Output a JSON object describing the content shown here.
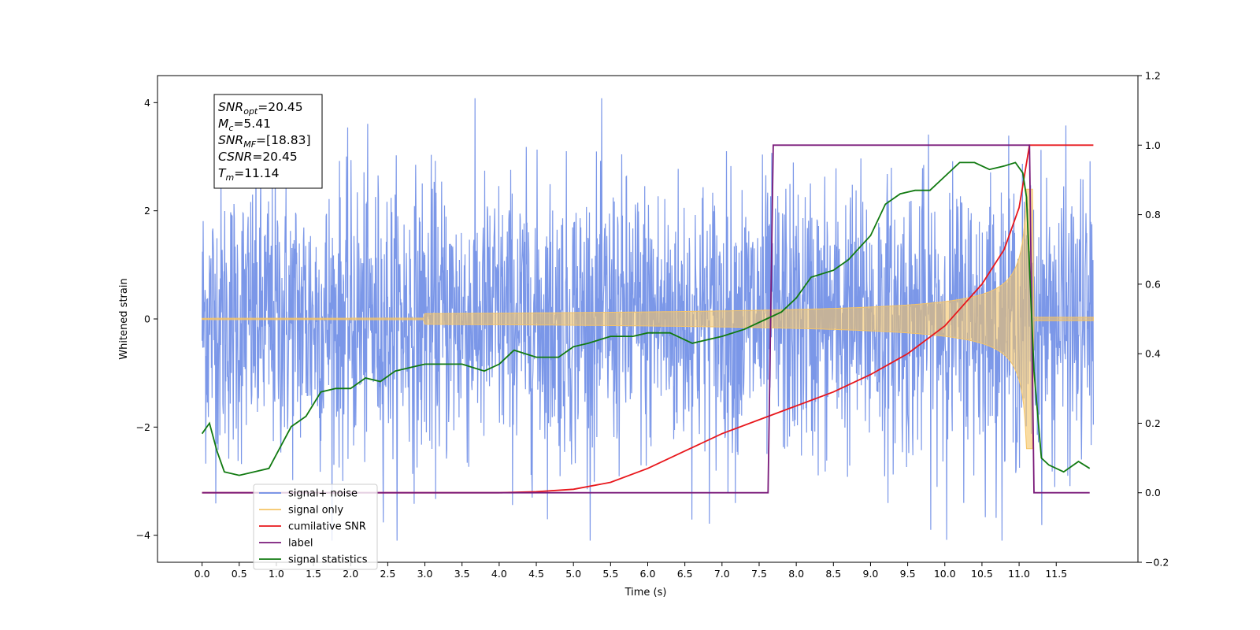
{
  "chart_data": {
    "type": "line",
    "xlabel": "Time (s)",
    "ylabel": "Whitened strain",
    "xlim": [
      -0.6,
      12.6
    ],
    "ylim": [
      -4.5,
      4.5
    ],
    "y2lim": [
      -0.2,
      1.2
    ],
    "x_ticks": [
      "0.0",
      "0.5",
      "1.0",
      "1.5",
      "2.0",
      "2.5",
      "3.0",
      "3.5",
      "4.0",
      "4.5",
      "5.0",
      "5.5",
      "6.0",
      "6.5",
      "7.0",
      "7.5",
      "8.0",
      "8.5",
      "9.0",
      "9.5",
      "10.0",
      "10.5",
      "11.0",
      "11.5"
    ],
    "y_ticks": [
      "−4",
      "−2",
      "0",
      "2",
      "4"
    ],
    "y2_ticks": [
      "−0.2",
      "0.0",
      "0.2",
      "0.4",
      "0.6",
      "0.8",
      "1.0",
      "1.2"
    ],
    "grid": false,
    "legend_position": "lower-left",
    "info_box": [
      {
        "main": "SNR",
        "sub": "opt",
        "rest": "=20.45"
      },
      {
        "main": "M",
        "sub": "c",
        "rest": "=5.41"
      },
      {
        "main": "SNR",
        "sub": "MF",
        "rest": "=[18.83]"
      },
      {
        "main": "CSNR",
        "sub": "",
        "rest": "=20.45"
      },
      {
        "main": "T",
        "sub": "m",
        "rest": "=11.14"
      }
    ],
    "series": [
      {
        "name": "signal+ noise",
        "color": "#6d8ce6",
        "axis": "left",
        "description_values": {
          "x_start": 0.0,
          "x_end": 12.0,
          "typical_amplitude": 1.3,
          "max": 4.08,
          "min": -4.1
        }
      },
      {
        "name": "signal only",
        "color": "#f5c466",
        "axis": "left",
        "chirp": {
          "x_start": 0.0,
          "merger_time": 11.14,
          "x_end": 12.0,
          "peak_amplitude": 2.4
        }
      },
      {
        "name": "cumilative SNR",
        "color": "#e8171c",
        "axis": "right",
        "x": [
          0.0,
          4.0,
          4.5,
          5.0,
          5.5,
          6.0,
          6.5,
          7.0,
          7.5,
          8.0,
          8.5,
          9.0,
          9.5,
          10.0,
          10.5,
          10.8,
          11.0,
          11.14,
          11.15,
          12.0
        ],
        "values": [
          0.0,
          0.0,
          0.003,
          0.01,
          0.03,
          0.07,
          0.12,
          0.17,
          0.21,
          0.25,
          0.29,
          0.34,
          0.4,
          0.48,
          0.6,
          0.7,
          0.82,
          1.0,
          1.0,
          1.0
        ]
      },
      {
        "name": "label",
        "color": "#7a1a7a",
        "axis": "right",
        "x": [
          0.0,
          7.62,
          7.69,
          11.14,
          11.2,
          11.95
        ],
        "values": [
          0.0,
          0.0,
          1.0,
          1.0,
          0.0,
          0.0
        ]
      },
      {
        "name": "signal statistics",
        "color": "#117a11",
        "axis": "right",
        "x": [
          0.0,
          0.1,
          0.2,
          0.3,
          0.5,
          0.7,
          0.9,
          1.0,
          1.2,
          1.4,
          1.6,
          1.8,
          2.0,
          2.2,
          2.4,
          2.6,
          2.8,
          3.0,
          3.2,
          3.5,
          3.8,
          4.0,
          4.2,
          4.5,
          4.8,
          5.0,
          5.2,
          5.5,
          5.8,
          6.0,
          6.3,
          6.6,
          7.0,
          7.3,
          7.6,
          7.8,
          8.0,
          8.2,
          8.5,
          8.7,
          9.0,
          9.2,
          9.4,
          9.6,
          9.8,
          10.0,
          10.2,
          10.4,
          10.6,
          10.8,
          10.95,
          11.05,
          11.1,
          11.2,
          11.3,
          11.4,
          11.6,
          11.8,
          11.95
        ],
        "values": [
          0.17,
          0.2,
          0.12,
          0.06,
          0.05,
          0.06,
          0.07,
          0.11,
          0.19,
          0.22,
          0.29,
          0.3,
          0.3,
          0.33,
          0.32,
          0.35,
          0.36,
          0.37,
          0.37,
          0.37,
          0.35,
          0.37,
          0.41,
          0.39,
          0.39,
          0.42,
          0.43,
          0.45,
          0.45,
          0.46,
          0.46,
          0.43,
          0.45,
          0.47,
          0.5,
          0.52,
          0.56,
          0.62,
          0.64,
          0.67,
          0.74,
          0.83,
          0.86,
          0.87,
          0.87,
          0.91,
          0.95,
          0.95,
          0.93,
          0.94,
          0.95,
          0.92,
          0.85,
          0.35,
          0.1,
          0.08,
          0.06,
          0.09,
          0.07
        ]
      }
    ]
  }
}
